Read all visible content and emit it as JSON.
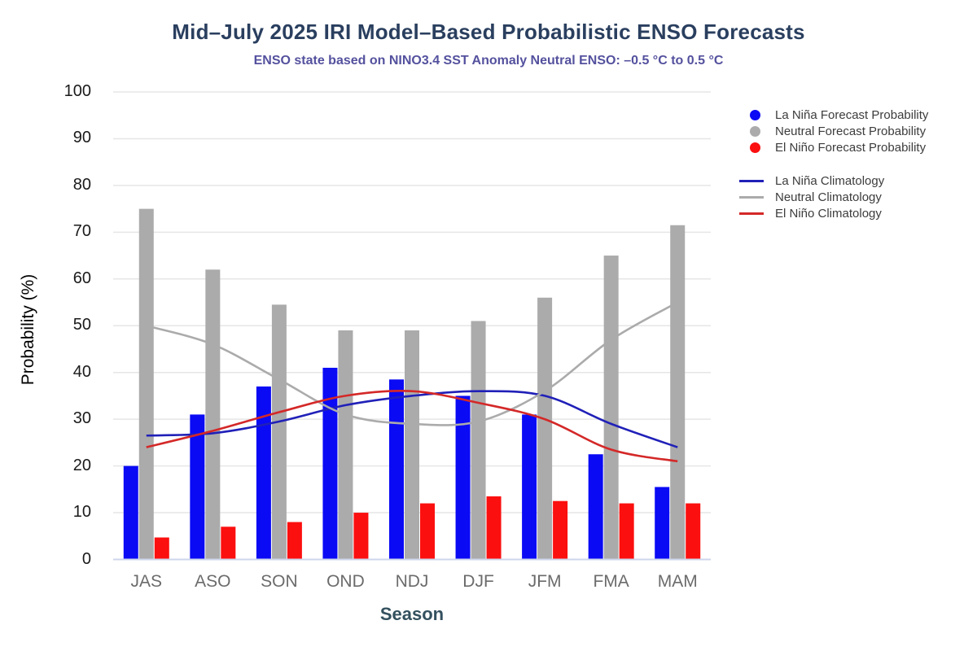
{
  "header": {
    "title": "Mid–July 2025 IRI Model–Based Probabilistic ENSO Forecasts",
    "subtitle": "ENSO state based on NINO3.4 SST Anomaly Neutral ENSO: –0.5 °C to 0.5 °C",
    "title_color": "#2a3f5f",
    "subtitle_color": "#54519e"
  },
  "chart_data": {
    "type": "bar",
    "title": "Mid–July 2025 IRI Model–Based Probabilistic ENSO Forecasts",
    "subtitle": "ENSO state based on NINO3.4 SST Anomaly Neutral ENSO: –0.5 °C to 0.5 °C",
    "xlabel": "Season",
    "ylabel": "Probability (%)",
    "ylim": [
      0,
      100
    ],
    "yticks": [
      0,
      10,
      20,
      30,
      40,
      50,
      60,
      70,
      80,
      90,
      100
    ],
    "grid": true,
    "legend_position": "top-right",
    "categories": [
      "JAS",
      "ASO",
      "SON",
      "OND",
      "NDJ",
      "DJF",
      "JFM",
      "FMA",
      "MAM"
    ],
    "series": [
      {
        "name": "La Niña Forecast Probability",
        "kind": "bar",
        "color": "#0a0af5",
        "values": [
          20,
          31,
          37,
          41,
          38.5,
          35,
          31,
          22.5,
          15.5
        ]
      },
      {
        "name": "Neutral Forecast Probability",
        "kind": "bar",
        "color": "#ababab",
        "values": [
          75,
          62,
          54.5,
          49,
          49,
          51,
          56,
          65,
          71.5
        ]
      },
      {
        "name": "El Niño Forecast Probability",
        "kind": "bar",
        "color": "#fb0f0f",
        "values": [
          4.7,
          7,
          8,
          10,
          12,
          13.5,
          12.5,
          12,
          12
        ]
      },
      {
        "name": "La Niña Climatology",
        "kind": "line",
        "color": "#2020b8",
        "values": [
          26.5,
          27,
          29.5,
          33,
          35,
          36,
          35,
          29,
          24
        ]
      },
      {
        "name": "Neutral Climatology",
        "kind": "line",
        "color": "#ababab",
        "values": [
          50,
          46,
          38.5,
          31,
          29,
          29.5,
          36,
          47,
          55
        ]
      },
      {
        "name": "El Niño Climatology",
        "kind": "line",
        "color": "#d42828",
        "values": [
          24,
          27.5,
          31.5,
          35,
          36,
          33.5,
          30,
          23.5,
          21
        ]
      }
    ],
    "colors": {
      "gridline": "#e6e6e6",
      "axis_line": "#ccd6eb"
    }
  }
}
